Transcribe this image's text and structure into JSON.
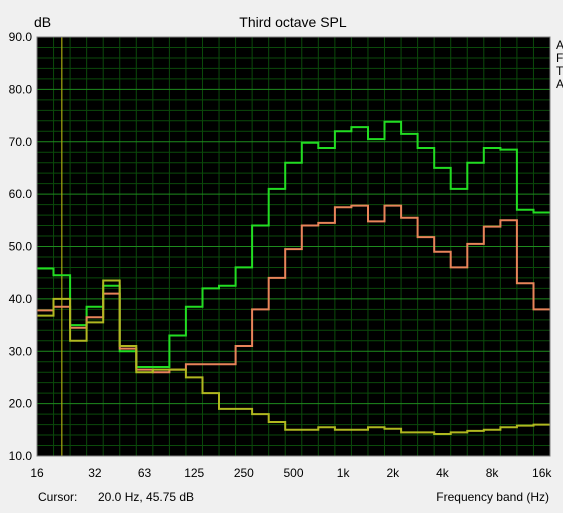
{
  "chart_data": {
    "type": "line",
    "title": "Third octave SPL",
    "ylabel": "dB",
    "xlabel": "Frequency band (Hz)",
    "ylim": [
      10,
      90
    ],
    "y_ticks": [
      "90.0",
      "80.0",
      "70.0",
      "60.0",
      "50.0",
      "40.0",
      "30.0",
      "20.0",
      "10.0"
    ],
    "x_tick_labels": [
      "16",
      "32",
      "63",
      "125",
      "250",
      "500",
      "1k",
      "2k",
      "4k",
      "8k",
      "16k"
    ],
    "bands": [
      "16",
      "20",
      "25",
      "31.5",
      "40",
      "50",
      "63",
      "80",
      "100",
      "125",
      "160",
      "200",
      "250",
      "315",
      "400",
      "500",
      "630",
      "800",
      "1k",
      "1.25k",
      "1.6k",
      "2k",
      "2.5k",
      "3.15k",
      "4k",
      "5k",
      "6.3k",
      "8k",
      "10k",
      "12.5k",
      "16k"
    ],
    "grid": true,
    "legend_position": "right (clipped)",
    "legend_fragments": [
      "A",
      "F",
      "T",
      "A"
    ],
    "cursor_readout": "20.0 Hz, 45.75 dB",
    "series": [
      {
        "color": "#22dd22",
        "values": [
          45.8,
          44.5,
          35.0,
          38.5,
          42.5,
          30.0,
          27.0,
          27.0,
          33.0,
          38.5,
          42.0,
          42.5,
          46.0,
          54.0,
          61.0,
          66.0,
          69.8,
          68.8,
          72.0,
          72.8,
          70.5,
          73.8,
          71.5,
          68.8,
          65.0,
          61.0,
          66.0,
          68.8,
          68.5,
          57.0,
          56.5
        ]
      },
      {
        "color": "#e8845a",
        "values": [
          37.8,
          38.5,
          34.5,
          36.5,
          41.0,
          30.5,
          26.5,
          26.0,
          26.5,
          27.5,
          27.5,
          27.5,
          31.0,
          38.0,
          44.0,
          49.5,
          54.0,
          54.5,
          57.5,
          57.8,
          54.8,
          57.8,
          55.5,
          51.8,
          49.0,
          46.0,
          50.5,
          53.8,
          55.0,
          43.0,
          38.0
        ]
      },
      {
        "color": "#b0b820",
        "values": [
          36.8,
          40.0,
          32.0,
          35.5,
          43.5,
          31.0,
          26.0,
          26.5,
          26.5,
          25.0,
          22.0,
          19.0,
          19.0,
          18.0,
          16.5,
          15.0,
          15.0,
          15.5,
          15.0,
          15.0,
          15.5,
          15.2,
          14.5,
          14.5,
          14.2,
          14.5,
          14.8,
          15.0,
          15.5,
          15.8,
          16.0
        ]
      }
    ]
  },
  "footer": {
    "cursor_label": "Cursor:",
    "cursor_value": "20.0 Hz, 45.75 dB",
    "axis_label": "Frequency band (Hz)"
  }
}
